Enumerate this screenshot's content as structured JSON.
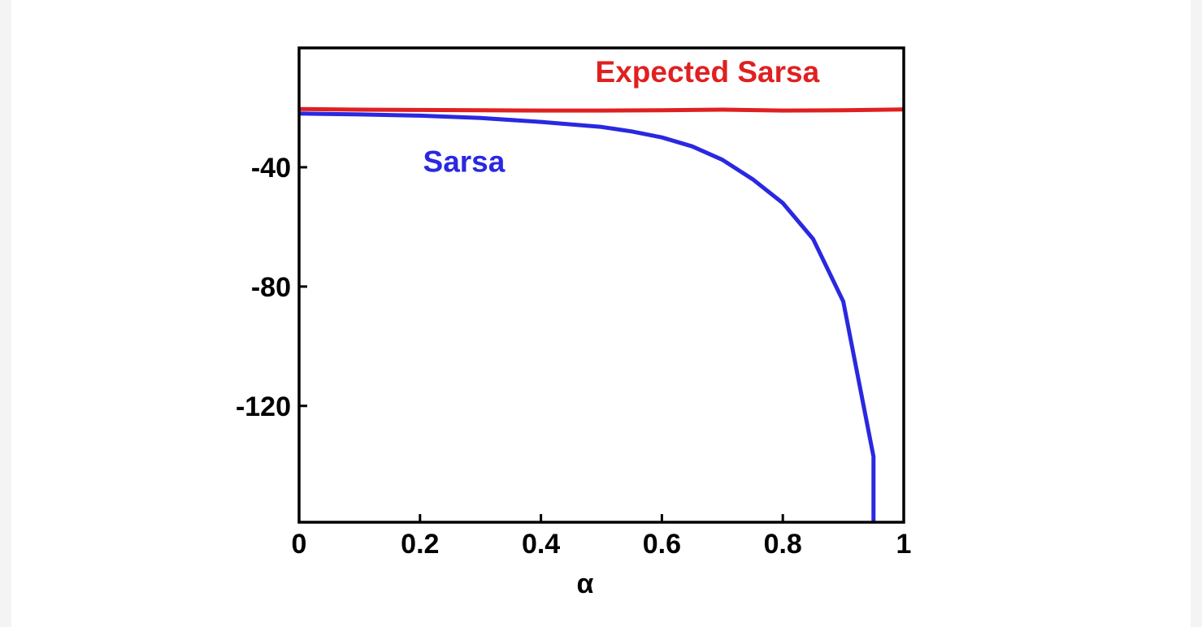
{
  "chart_data": {
    "type": "line",
    "title": "",
    "xlabel": "α",
    "ylabel": "",
    "xlim": [
      0,
      1
    ],
    "ylim": [
      -159,
      0
    ],
    "x_ticks": [
      0,
      0.2,
      0.4,
      0.6,
      0.8,
      1
    ],
    "x_tick_labels": [
      "0",
      "0.2",
      "0.4",
      "0.6",
      "0.8",
      "1"
    ],
    "y_ticks": [
      -40,
      -80,
      -120
    ],
    "y_tick_labels": [
      "-40",
      "-80",
      "-120"
    ],
    "grid": false,
    "legend": "inline labels",
    "series": [
      {
        "name": "Expected Sarsa",
        "color": "#e02020",
        "x": [
          0,
          0.1,
          0.2,
          0.3,
          0.4,
          0.5,
          0.6,
          0.7,
          0.8,
          0.9,
          1.0
        ],
        "y": [
          -20.5,
          -20.7,
          -20.8,
          -20.9,
          -21.0,
          -21.0,
          -20.9,
          -20.7,
          -21.0,
          -20.9,
          -20.6
        ]
      },
      {
        "name": "Sarsa",
        "color": "#2a28e0",
        "x": [
          0,
          0.1,
          0.2,
          0.3,
          0.4,
          0.5,
          0.55,
          0.6,
          0.65,
          0.7,
          0.75,
          0.8,
          0.85,
          0.9,
          0.95,
          0.95
        ],
        "y": [
          -22,
          -22.3,
          -22.7,
          -23.5,
          -24.8,
          -26.5,
          -28,
          -30,
          -33,
          -37.5,
          -44,
          -52,
          -64,
          -85,
          -137,
          -159
        ]
      }
    ]
  }
}
